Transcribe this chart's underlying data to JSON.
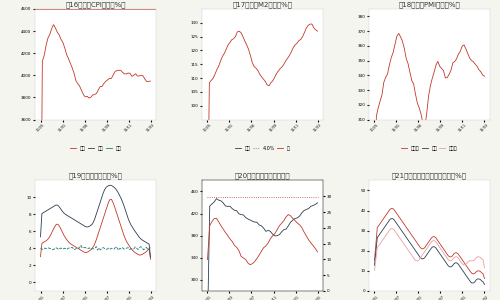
{
  "background": "#f5f5f0",
  "panel_bg": "#ffffff",
  "fig16_title": "图16：各国CPI增速（%）",
  "fig17_title": "图17：各国M2增速（%）",
  "fig18_title": "图18：各国PMI指数（%）",
  "fig19_title": "图19：美国失业率（%）",
  "fig20_title": "图20：彭博全球矿业股指数",
  "fig21_title": "图21：中国固定资产投资增速（%）",
  "divider_color": "#c0392b",
  "title_color": "#333333",
  "label_fontsize": 4.5,
  "title_fontsize": 5.0,
  "line_red": "#c0392b",
  "line_dark": "#2c3e50",
  "line_teal": "#1a7a6e",
  "line_pink": "#e8a0a0",
  "line_dotted": "#c0392b",
  "legend_fontsize": 4
}
